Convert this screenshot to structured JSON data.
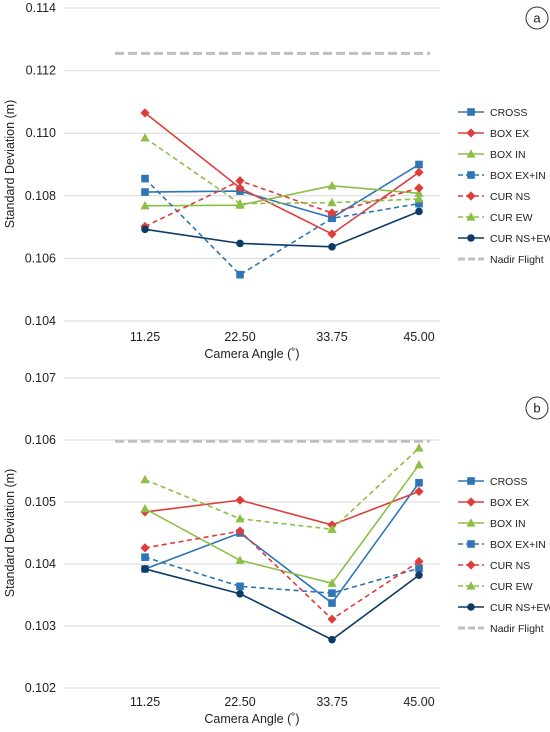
{
  "chart_data": [
    {
      "type": "line",
      "panel_label": "a",
      "x": [
        11.25,
        22.5,
        33.75,
        45.0
      ],
      "tick_labels_x": [
        "11.25",
        "22.50",
        "33.75",
        "45.00"
      ],
      "tick_labels_y": [
        "0.104",
        "0.106",
        "0.108",
        "0.110",
        "0.112",
        "0.114"
      ],
      "ylim": [
        0.104,
        0.114
      ],
      "xlabel": "Camera Angle (˚)",
      "ylabel": "Standard Deviation (m)",
      "grid": "horizontal",
      "legend_position": "right",
      "series": [
        {
          "name": "CROSS",
          "color": "#2e75b6",
          "marker": "square",
          "dash": "solid",
          "values": [
            0.10812,
            0.10815,
            0.1073,
            0.109
          ]
        },
        {
          "name": "BOX EX",
          "color": "#e03c3c",
          "marker": "diamond",
          "dash": "solid",
          "values": [
            0.11065,
            0.10825,
            0.10678,
            0.10875
          ]
        },
        {
          "name": "BOX IN",
          "color": "#8cbf45",
          "marker": "triangle",
          "dash": "solid",
          "values": [
            0.10768,
            0.1077,
            0.10832,
            0.10808
          ]
        },
        {
          "name": "BOX EX+IN",
          "color": "#2e75b6",
          "marker": "square",
          "dash": "dashed",
          "values": [
            0.10855,
            0.10548,
            0.10728,
            0.10775
          ]
        },
        {
          "name": "CUR NS",
          "color": "#e03c3c",
          "marker": "diamond",
          "dash": "dashed",
          "values": [
            0.10702,
            0.10848,
            0.10745,
            0.10825
          ]
        },
        {
          "name": "CUR EW",
          "color": "#8cbf45",
          "marker": "triangle",
          "dash": "dashed",
          "values": [
            0.10985,
            0.10775,
            0.10778,
            0.1079
          ]
        },
        {
          "name": "CUR NS+EW",
          "color": "#0d3b66",
          "marker": "circle",
          "dash": "solid",
          "values": [
            0.10693,
            0.10648,
            0.10637,
            0.1075
          ]
        },
        {
          "name": "Nadir Flight",
          "color": "#bfbfbf",
          "marker": "none",
          "dash": "dashed",
          "values": [
            0.11255,
            0.11255,
            0.11255,
            0.11255
          ]
        }
      ]
    },
    {
      "type": "line",
      "panel_label": "b",
      "x": [
        11.25,
        22.5,
        33.75,
        45.0
      ],
      "tick_labels_x": [
        "11.25",
        "22.50",
        "33.75",
        "45.00"
      ],
      "tick_labels_y": [
        "0.102",
        "0.103",
        "0.104",
        "0.105",
        "0.106",
        "0.107"
      ],
      "ylim": [
        0.102,
        0.107
      ],
      "xlabel": "Camera Angle (˚)",
      "ylabel": "Standard Deviation (m)",
      "grid": "horizontal",
      "legend_position": "right",
      "series": [
        {
          "name": "CROSS",
          "color": "#2e75b6",
          "marker": "square",
          "dash": "solid",
          "values": [
            0.10392,
            0.1045,
            0.10337,
            0.10531
          ]
        },
        {
          "name": "BOX EX",
          "color": "#e03c3c",
          "marker": "diamond",
          "dash": "solid",
          "values": [
            0.10484,
            0.10503,
            0.10463,
            0.10517
          ]
        },
        {
          "name": "BOX IN",
          "color": "#8cbf45",
          "marker": "triangle",
          "dash": "solid",
          "values": [
            0.10489,
            0.10406,
            0.10369,
            0.1056
          ]
        },
        {
          "name": "BOX EX+IN",
          "color": "#2e75b6",
          "marker": "square",
          "dash": "dashed",
          "values": [
            0.10411,
            0.10364,
            0.10353,
            0.10393
          ]
        },
        {
          "name": "CUR NS",
          "color": "#e03c3c",
          "marker": "diamond",
          "dash": "dashed",
          "values": [
            0.10426,
            0.10453,
            0.10311,
            0.10404
          ]
        },
        {
          "name": "CUR EW",
          "color": "#8cbf45",
          "marker": "triangle",
          "dash": "dashed",
          "values": [
            0.10536,
            0.10473,
            0.10456,
            0.10587
          ]
        },
        {
          "name": "CUR NS+EW",
          "color": "#0d3b66",
          "marker": "circle",
          "dash": "solid",
          "values": [
            0.10392,
            0.10352,
            0.10278,
            0.10382
          ]
        },
        {
          "name": "Nadir Flight",
          "color": "#bfbfbf",
          "marker": "none",
          "dash": "dashed",
          "values": [
            0.10598,
            0.10598,
            0.10598,
            0.10598
          ]
        }
      ]
    }
  ]
}
